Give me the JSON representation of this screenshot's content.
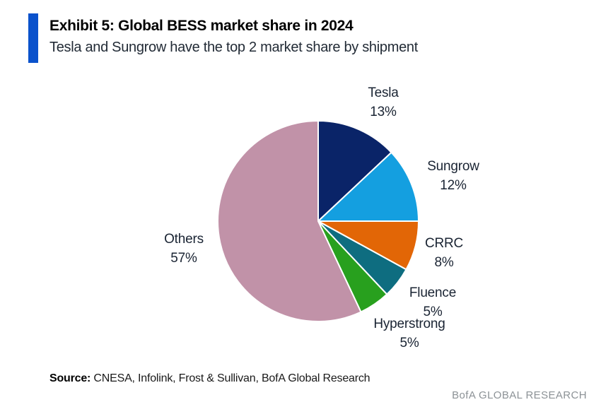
{
  "header": {
    "title": "Exhibit 5: Global BESS market share in 2024",
    "subtitle": "Tesla and Sungrow have the top 2 market share by shipment",
    "accent_color": "#0a52cc"
  },
  "chart_data": {
    "type": "pie",
    "title": "Global BESS market share in 2024",
    "unit": "percent of shipments",
    "start_angle_deg": 0,
    "direction": "clockwise",
    "legend_position": "outside-labels",
    "slices": [
      {
        "label": "Tesla",
        "value": 13,
        "pct": "13%",
        "color": "#0a2468"
      },
      {
        "label": "Sungrow",
        "value": 12,
        "pct": "12%",
        "color": "#149fe0"
      },
      {
        "label": "CRRC",
        "value": 8,
        "pct": "8%",
        "color": "#e26606"
      },
      {
        "label": "Fluence",
        "value": 5,
        "pct": "5%",
        "color": "#0e6d80"
      },
      {
        "label": "Hyperstrong",
        "value": 5,
        "pct": "5%",
        "color": "#28a01e"
      },
      {
        "label": "Others",
        "value": 57,
        "pct": "57%",
        "color": "#c192a8"
      }
    ]
  },
  "footer": {
    "source_label": "Source:",
    "source_text": " CNESA, Infolink, Frost & Sullivan, BofA Global Research",
    "brand": "BofA GLOBAL RESEARCH"
  }
}
